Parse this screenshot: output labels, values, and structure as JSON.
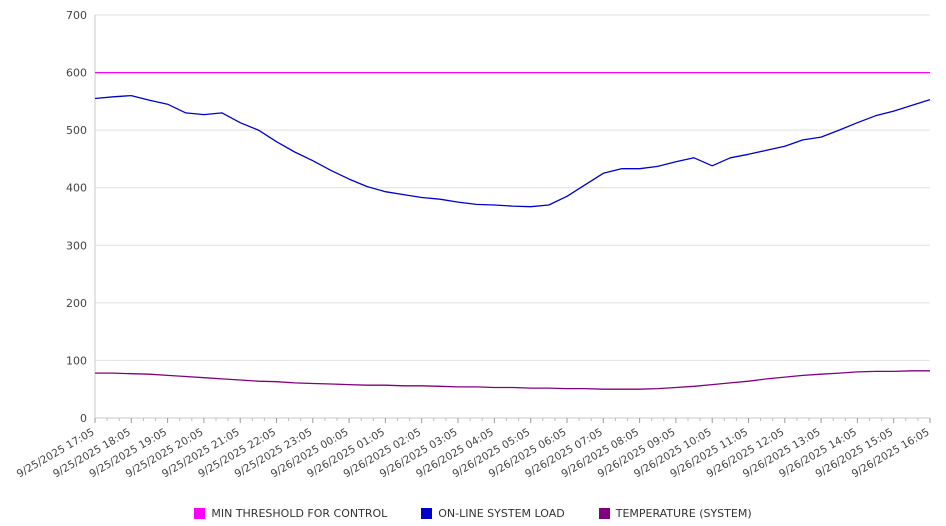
{
  "chart_data": {
    "type": "line",
    "title": "",
    "xlabel": "",
    "ylabel": "",
    "ylim": [
      0,
      700
    ],
    "ytick_step": 100,
    "grid": true,
    "legend_position": "bottom",
    "x_tick_labels": [
      "9/25/2025 17:05",
      "9/25/2025 18:05",
      "9/25/2025 19:05",
      "9/25/2025 20:05",
      "9/25/2025 21:05",
      "9/25/2025 22:05",
      "9/25/2025 23:05",
      "9/26/2025 00:05",
      "9/26/2025 01:05",
      "9/26/2025 02:05",
      "9/26/2025 03:05",
      "9/26/2025 04:05",
      "9/26/2025 05:05",
      "9/26/2025 06:05",
      "9/26/2025 07:05",
      "9/26/2025 08:05",
      "9/26/2025 09:05",
      "9/26/2025 10:05",
      "9/26/2025 11:05",
      "9/26/2025 12:05",
      "9/26/2025 13:05",
      "9/26/2025 14:05",
      "9/26/2025 15:05",
      "9/26/2025 16:05"
    ],
    "x_resolution_note": "series values sampled every 30 minutes from 17:05 to 16:05",
    "series": [
      {
        "name": "MIN THRESHOLD FOR CONTROL",
        "color": "#ff00ff",
        "constant": 600
      },
      {
        "name": "ON-LINE SYSTEM LOAD",
        "color": "#0000cd",
        "values": [
          555,
          558,
          560,
          552,
          545,
          530,
          527,
          530,
          513,
          500,
          480,
          462,
          447,
          430,
          415,
          402,
          393,
          388,
          383,
          380,
          375,
          371,
          370,
          368,
          367,
          370,
          385,
          405,
          425,
          433,
          433,
          437,
          445,
          452,
          438,
          452,
          458,
          465,
          472,
          483,
          488,
          500,
          513,
          525,
          533,
          543,
          553
        ]
      },
      {
        "name": "TEMPERATURE (SYSTEM)",
        "color": "#800080",
        "values": [
          78,
          78,
          77,
          76,
          74,
          72,
          70,
          68,
          66,
          64,
          63,
          61,
          60,
          59,
          58,
          57,
          57,
          56,
          56,
          55,
          54,
          54,
          53,
          53,
          52,
          52,
          51,
          51,
          50,
          50,
          50,
          51,
          53,
          55,
          58,
          61,
          64,
          68,
          71,
          74,
          76,
          78,
          80,
          81,
          81,
          82,
          82
        ]
      }
    ]
  }
}
